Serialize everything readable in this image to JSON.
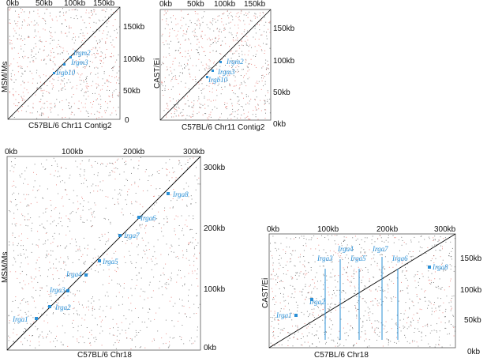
{
  "panels": [
    {
      "id": "tl",
      "xlabel": "C57BL/6 Chr11 Contig2",
      "ylabel": "MSM/Ms",
      "top_ticks": [
        "0kb",
        "50kb",
        "100kb",
        "150kb"
      ],
      "right_ticks": [
        "150kb",
        "100kb",
        "50kb",
        "0"
      ],
      "genes": [
        "Irgm2",
        "Irgm3",
        "Irgb10"
      ]
    },
    {
      "id": "tr",
      "xlabel": "C57BL/6 Chr11 Contig2",
      "ylabel": "CAST/Ei",
      "top_ticks": [
        "0kb",
        "50kb",
        "100kb",
        "150kb"
      ],
      "right_ticks": [
        "150kb",
        "100kb",
        "50kb",
        "0kb"
      ],
      "genes": [
        "Irgm2",
        "Irgm3",
        "Irgb10"
      ]
    },
    {
      "id": "bl",
      "xlabel": "C57BL/6    Chr18",
      "ylabel": "MSM/Ms",
      "top_ticks": [
        "0kb",
        "100kb",
        "200kb",
        "300kb"
      ],
      "right_ticks": [
        "300kb",
        "200kb",
        "100kb",
        "0kb"
      ],
      "genes": [
        "Irga8",
        "Irga6",
        "Irga7",
        "Irga5",
        "Irga4",
        "Irga3",
        "Irga2",
        "Irga1"
      ]
    },
    {
      "id": "br",
      "xlabel": "C57BL/6    Chr18",
      "ylabel": "CAST/Ei",
      "top_ticks": [
        "0kb",
        "100kb",
        "200kb",
        "300kb"
      ],
      "right_ticks": [
        "150kb",
        "100kb",
        "50kb",
        "0kb"
      ],
      "genes": [
        "Irga8",
        "Irga4",
        "Irga7",
        "Irga3",
        "Irga5",
        "Irga6",
        "Irga2",
        "Irga1"
      ]
    }
  ],
  "colors": {
    "diagonal": "#000000",
    "forward_dots": "#222222",
    "reverse_dots": "#d9342b",
    "gene_label": "#2a8fd6",
    "frame": "#555555"
  }
}
